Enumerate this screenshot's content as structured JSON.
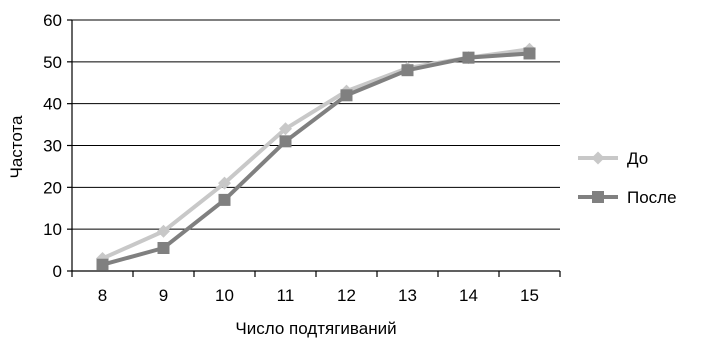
{
  "chart_data": {
    "type": "line",
    "title": "",
    "xlabel": "Число подтягиваний",
    "ylabel": "Частота",
    "categories": [
      "8",
      "9",
      "10",
      "11",
      "12",
      "13",
      "14",
      "15"
    ],
    "ylim": [
      0,
      60
    ],
    "yticks": [
      "0",
      "10",
      "20",
      "30",
      "40",
      "50",
      "60"
    ],
    "grid": "horizontal",
    "legend_position": "right",
    "series": [
      {
        "name": "До",
        "values": [
          3,
          9.5,
          21,
          34,
          43,
          48.5,
          51,
          53
        ],
        "color": "#c8c8c8",
        "marker": "diamond"
      },
      {
        "name": "После",
        "values": [
          1.5,
          5.5,
          17,
          31,
          42,
          48,
          51,
          52
        ],
        "color": "#808080",
        "marker": "square"
      }
    ]
  }
}
